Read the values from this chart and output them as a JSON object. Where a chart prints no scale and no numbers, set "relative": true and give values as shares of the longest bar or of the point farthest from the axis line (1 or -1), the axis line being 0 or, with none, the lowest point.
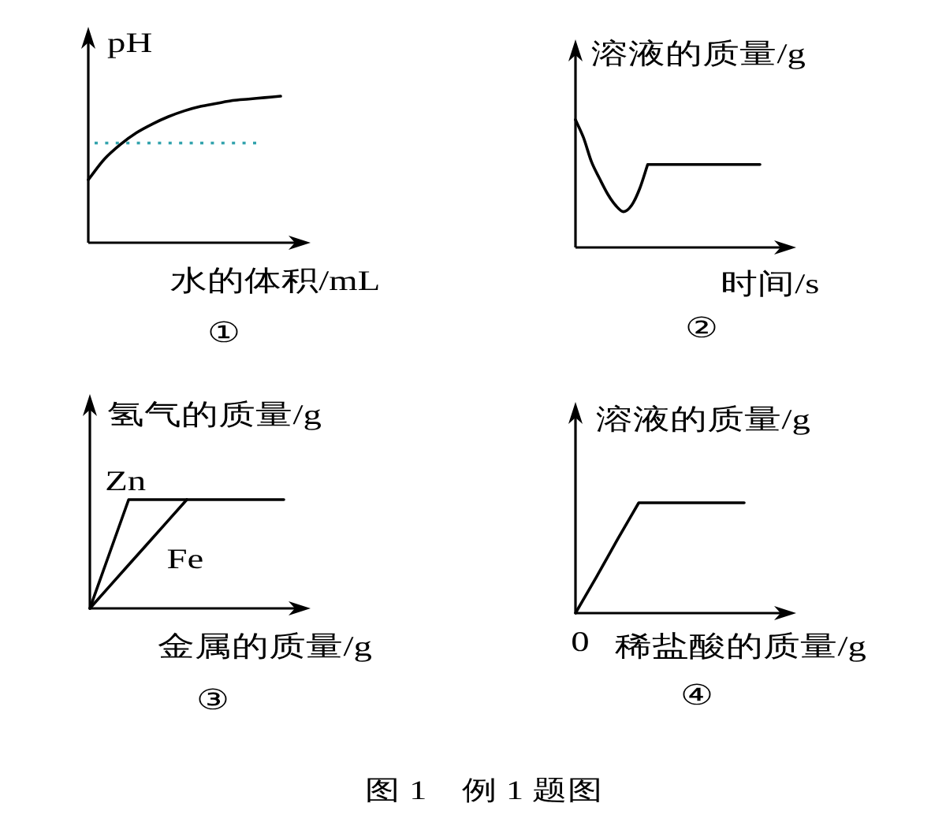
{
  "chart_data": [
    {
      "type": "line",
      "relative": true,
      "ylabel": "pH",
      "xlabel": "水的体积/mL",
      "categories": [
        null,
        null,
        null,
        null,
        null,
        null,
        null,
        null,
        null,
        null,
        null,
        null,
        null
      ],
      "values": [
        0.43,
        0.57,
        0.67,
        0.75,
        0.81,
        0.86,
        0.9,
        0.93,
        0.95,
        0.97,
        0.98,
        0.99,
        1
      ],
      "color": "#000000",
      "ref_lines": [
        {
          "axis": "y",
          "value": 0.68,
          "color": "#33a3ad",
          "line_style": "dotted"
        }
      ],
      "annotations": [
        "①"
      ]
    },
    {
      "type": "line",
      "relative": true,
      "ylabel": "溶液的质量/g",
      "xlabel": "时间/s",
      "categories": [
        null,
        null,
        null,
        null,
        null,
        null,
        null,
        null,
        null,
        null,
        null,
        null,
        null,
        null,
        null,
        null,
        null,
        null,
        null,
        null,
        null,
        null,
        null,
        null
      ],
      "values": [
        1,
        0.86,
        0.67,
        0.54,
        0.42,
        0.33,
        0.28,
        0.33,
        0.46,
        0.65,
        0.65,
        0.65,
        0.65,
        0.65,
        0.65,
        0.65,
        0.65,
        0.65,
        0.65,
        0.65,
        0.65,
        0.65,
        0.65,
        0.65
      ],
      "color": "#000000",
      "annotations": [
        "②"
      ]
    },
    {
      "type": "line",
      "relative": true,
      "ylabel": "氢气的质量/g",
      "xlabel": "金属的质量/g",
      "categories": [
        null,
        null,
        null,
        null,
        null,
        null,
        null,
        null,
        null,
        null,
        null
      ],
      "series": [
        {
          "name": "Zn",
          "color": "#000000",
          "values": [
            0,
            0.5,
            1,
            1,
            1,
            1,
            1,
            1,
            1,
            1,
            1
          ]
        },
        {
          "name": "Fe",
          "color": "#000000",
          "values": [
            0,
            0.2,
            0.4,
            0.6,
            0.8,
            1,
            null,
            null,
            null,
            null,
            null
          ]
        }
      ],
      "annotations": [
        "③"
      ]
    },
    {
      "type": "line",
      "relative": true,
      "ylabel": "溶液的质量/g",
      "xlabel": "稀盐酸的质量/g",
      "categories": [
        null,
        null,
        null,
        null,
        null,
        null,
        null,
        null,
        null
      ],
      "values": [
        0,
        0.33,
        0.67,
        1,
        1,
        1,
        1,
        1,
        1
      ],
      "color": "#000000",
      "annotations": [
        "④",
        {
          "text": "0",
          "y": 0
        }
      ]
    },
    {
      "type": "other",
      "title": "图 1　例 1 题图"
    }
  ]
}
